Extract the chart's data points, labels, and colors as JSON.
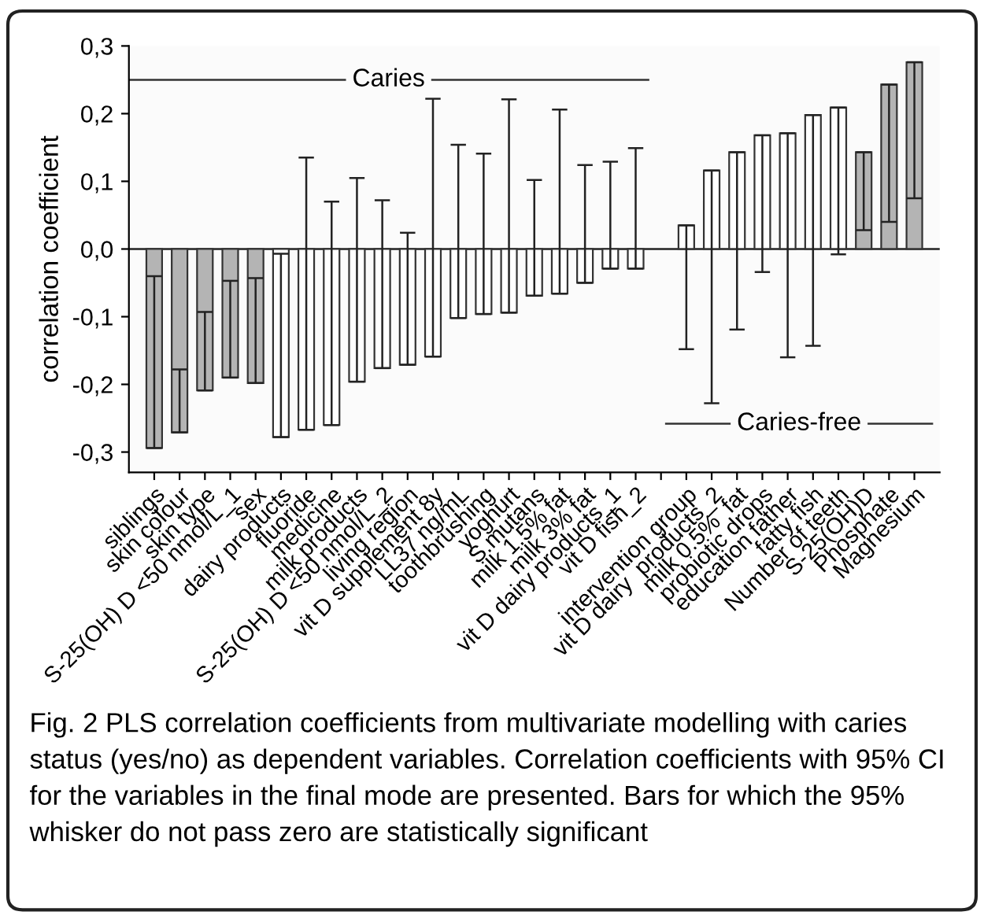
{
  "chart_data": {
    "type": "bar",
    "ylabel": "correlation coefficient",
    "categories": [
      "siblings",
      "skin colour",
      "skin type",
      "S-25(OH) D <50 nmol/L_1",
      "sex",
      "dairy products",
      "fluoride",
      "medicine",
      "milk products",
      "S-25(OH) D <50 nmol/L_2",
      "living region",
      "vit D supplement 8y",
      "LL37 ng/mL",
      "toothbrushing",
      "yoghurt",
      "S.mutans",
      "milk 1.5% fat",
      "milk 3% fat",
      "vit D dairy products_1",
      "vit D fish_2",
      null,
      "intervention group",
      "vit D dairy  products_2",
      "milk 0.5%  fat",
      "probiotic drops",
      "education father",
      "fatty fish",
      "Number of teeth",
      "S-25(OH)D",
      "Phosphate",
      "Magnesium"
    ],
    "values": [
      -0.294,
      -0.271,
      -0.209,
      -0.19,
      -0.198,
      -0.278,
      -0.267,
      -0.26,
      -0.196,
      -0.176,
      -0.171,
      -0.159,
      -0.102,
      -0.096,
      -0.094,
      -0.069,
      -0.066,
      -0.05,
      -0.029,
      -0.029,
      null,
      0.035,
      0.116,
      0.143,
      0.168,
      0.171,
      0.198,
      0.209,
      0.143,
      0.243,
      0.276
    ],
    "errors": [
      [
        -0.294,
        -0.04
      ],
      [
        -0.271,
        -0.178
      ],
      [
        -0.209,
        -0.093
      ],
      [
        -0.19,
        -0.047
      ],
      [
        -0.198,
        -0.043
      ],
      [
        -0.278,
        -0.007
      ],
      [
        -0.267,
        0.135
      ],
      [
        -0.26,
        0.07
      ],
      [
        -0.196,
        0.105
      ],
      [
        -0.176,
        0.072
      ],
      [
        -0.171,
        0.024
      ],
      [
        -0.159,
        0.222
      ],
      [
        -0.102,
        0.154
      ],
      [
        -0.096,
        0.141
      ],
      [
        -0.094,
        0.221
      ],
      [
        -0.069,
        0.102
      ],
      [
        -0.066,
        0.206
      ],
      [
        -0.05,
        0.124
      ],
      [
        -0.029,
        0.129
      ],
      [
        -0.029,
        0.149
      ],
      null,
      [
        -0.148,
        0.035
      ],
      [
        -0.228,
        0.116
      ],
      [
        -0.119,
        0.143
      ],
      [
        -0.034,
        0.168
      ],
      [
        -0.16,
        0.171
      ],
      [
        -0.143,
        0.198
      ],
      [
        -0.008,
        0.209
      ],
      [
        0.028,
        0.143
      ],
      [
        0.04,
        0.243
      ],
      [
        0.075,
        0.276
      ]
    ],
    "colors": [
      "#b4b4b4",
      "#b4b4b4",
      "#b4b4b4",
      "#b4b4b4",
      "#b4b4b4",
      "#ffffff",
      "#ffffff",
      "#ffffff",
      "#ffffff",
      "#ffffff",
      "#ffffff",
      "#ffffff",
      "#ffffff",
      "#ffffff",
      "#ffffff",
      "#ffffff",
      "#ffffff",
      "#ffffff",
      "#ffffff",
      "#ffffff",
      "#ffffff",
      "#ffffff",
      "#ffffff",
      "#ffffff",
      "#ffffff",
      "#ffffff",
      "#ffffff",
      "#ffffff",
      "#b4b4b4",
      "#b4b4b4",
      "#b4b4b4"
    ],
    "ylim": [
      -0.33,
      0.3
    ],
    "yticks": [
      {
        "value": -0.3,
        "label": "-0,3"
      },
      {
        "value": -0.2,
        "label": "-0,2"
      },
      {
        "value": -0.1,
        "label": "-0,1"
      },
      {
        "value": 0.0,
        "label": "0,0"
      },
      {
        "value": 0.1,
        "label": "0,1"
      },
      {
        "value": 0.2,
        "label": "0,2"
      },
      {
        "value": 0.3,
        "label": "0,3"
      }
    ],
    "grid": false,
    "ref_lines": [
      {
        "axis": "y",
        "value": 0.0,
        "color": "#222222"
      },
      {
        "axis": "y",
        "value": 0.25,
        "label": "Caries",
        "color": "#333333"
      },
      {
        "axis": "y",
        "value": -0.258,
        "label": "Caries-free",
        "color": "#333333"
      }
    ],
    "annotations": [
      "Fig. 2 PLS correlation coefficients from multivariate modelling with caries status (yes/no) as dependent variables. Correlation coefficients with 95% CI for the variables in the final mode are presented. Bars for which the 95% whisker do not pass zero are statistically significant"
    ]
  }
}
